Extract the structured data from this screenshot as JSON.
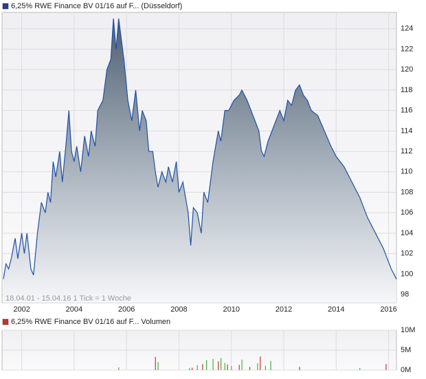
{
  "chart_data": [
    {
      "type": "area",
      "name": "6,25% RWE Finance BV 01/16 auf F... (Düsseldorf)",
      "color": "#1f4fa8",
      "legend_color": "#1f3f99",
      "note": "18.04.01 - 15.04.16   1 Tick = 1 Woche",
      "x": [
        2001.3,
        2001.4,
        2001.5,
        2001.6,
        2001.75,
        2001.85,
        2002.0,
        2002.1,
        2002.2,
        2002.35,
        2002.45,
        2002.6,
        2002.75,
        2002.9,
        2003.0,
        2003.1,
        2003.2,
        2003.3,
        2003.45,
        2003.55,
        2003.7,
        2003.8,
        2003.9,
        2004.0,
        2004.1,
        2004.25,
        2004.4,
        2004.55,
        2004.65,
        2004.8,
        2004.9,
        2005.1,
        2005.25,
        2005.4,
        2005.5,
        2005.6,
        2005.7,
        2005.8,
        2005.9,
        2006.05,
        2006.2,
        2006.35,
        2006.5,
        2006.6,
        2006.75,
        2006.85,
        2007.0,
        2007.1,
        2007.2,
        2007.35,
        2007.5,
        2007.6,
        2007.75,
        2007.9,
        2008.0,
        2008.15,
        2008.35,
        2008.45,
        2008.55,
        2008.7,
        2008.85,
        2008.95,
        2009.1,
        2009.3,
        2009.5,
        2009.6,
        2009.75,
        2009.9,
        2010.1,
        2010.3,
        2010.4,
        2010.6,
        2010.75,
        2010.9,
        2011.05,
        2011.15,
        2011.25,
        2011.4,
        2011.55,
        2011.7,
        2011.85,
        2012.0,
        2012.15,
        2012.3,
        2012.45,
        2012.6,
        2012.75,
        2012.9,
        2013.05,
        2013.3,
        2013.55,
        2013.8,
        2014.0,
        2014.3,
        2014.6,
        2014.9,
        2015.2,
        2015.5,
        2015.8,
        2016.1,
        2016.3
      ],
      "values": [
        99.5,
        101,
        100.5,
        101.5,
        103.5,
        101.5,
        104,
        102,
        104,
        100.5,
        99.9,
        104,
        107,
        106,
        108,
        107,
        111,
        109.5,
        112,
        109,
        113,
        116,
        112,
        111,
        112.5,
        110,
        113.5,
        111.5,
        114,
        112.5,
        116,
        117,
        120,
        121,
        125,
        122,
        125,
        123,
        121,
        117,
        115,
        118,
        114,
        116,
        115,
        112,
        112,
        110,
        108.5,
        110,
        109,
        110.5,
        109,
        111,
        108,
        109,
        106,
        102.8,
        106.5,
        106,
        104,
        108,
        107,
        111,
        114,
        113,
        116,
        116,
        117,
        117.5,
        118,
        117,
        116,
        115,
        114,
        112,
        111.5,
        113,
        114,
        115,
        116,
        115,
        117,
        116.5,
        118,
        118.5,
        117.5,
        117,
        116,
        115.5,
        114,
        112.5,
        111.5,
        110.5,
        109,
        107.5,
        105.5,
        104,
        102.5,
        100.5,
        99.5
      ],
      "xlim": [
        2001.25,
        2016.3
      ],
      "xticks": [
        2002,
        2004,
        2006,
        2008,
        2010,
        2012,
        2014,
        2016
      ],
      "ylim": [
        97.2,
        125.6
      ],
      "yticks": [
        98,
        100,
        102,
        104,
        106,
        108,
        110,
        112,
        114,
        116,
        118,
        120,
        122,
        124
      ],
      "grid": true
    },
    {
      "type": "bar",
      "name": "6,25% RWE Finance BV 01/16 auf F... Volumen",
      "legend_color": "#c83232",
      "x": [
        2005.7,
        2007.1,
        2007.2,
        2008.4,
        2008.5,
        2008.7,
        2008.9,
        2009.05,
        2009.3,
        2009.5,
        2009.6,
        2009.75,
        2009.85,
        2010.0,
        2010.3,
        2010.4,
        2010.7,
        2011.0,
        2011.1,
        2011.3,
        2011.5,
        2012.6,
        2014.9,
        2015.9
      ],
      "values": [
        700000,
        3300000,
        2000000,
        500000,
        600000,
        1200000,
        1500000,
        2500000,
        2800000,
        2200000,
        3000000,
        1800000,
        1400000,
        1000000,
        1300000,
        2600000,
        800000,
        1700000,
        3400000,
        1100000,
        2300000,
        800000,
        500000,
        1500000
      ],
      "colors": [
        "#3cb43c",
        "#c83232",
        "#3cb43c",
        "#3cb43c",
        "#c83232",
        "#3cb43c",
        "#c83232",
        "#3cb43c",
        "#3cb43c",
        "#c83232",
        "#3cb43c",
        "#3cb43c",
        "#c83232",
        "#3cb43c",
        "#c83232",
        "#3cb43c",
        "#c83232",
        "#3cb43c",
        "#c83232",
        "#3cb43c",
        "#3cb43c",
        "#c83232",
        "#3cb43c",
        "#c83232"
      ],
      "xlim": [
        2001.25,
        2016.3
      ],
      "xticks": [
        2002,
        2004,
        2006,
        2008,
        2010,
        2012,
        2014,
        2016
      ],
      "ylim": [
        0,
        10000000
      ],
      "yticks": [
        {
          "value": 0,
          "label": "0M"
        },
        {
          "value": 5000000,
          "label": "5M"
        },
        {
          "value": 10000000,
          "label": "10M"
        }
      ],
      "grid": true
    }
  ]
}
